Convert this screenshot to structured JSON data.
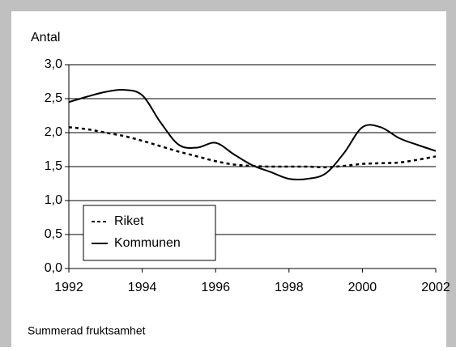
{
  "chart_data": {
    "type": "line",
    "y_label": "Antal",
    "caption": "Summerad fruktsamhet",
    "x": [
      1992,
      1992.5,
      1993,
      1993.5,
      1994,
      1994.5,
      1995,
      1995.5,
      1996,
      1996.5,
      1997,
      1997.5,
      1998,
      1998.5,
      1999,
      1999.5,
      2000,
      2000.5,
      2001,
      2001.5,
      2002
    ],
    "series": [
      {
        "name": "Riket",
        "color": "#000000",
        "dash": true,
        "values": [
          2.08,
          2.05,
          2.0,
          1.95,
          1.88,
          1.8,
          1.72,
          1.65,
          1.58,
          1.53,
          1.51,
          1.5,
          1.5,
          1.5,
          1.49,
          1.51,
          1.54,
          1.55,
          1.56,
          1.6,
          1.65
        ]
      },
      {
        "name": "Kommunen",
        "color": "#000000",
        "dash": false,
        "values": [
          2.45,
          2.53,
          2.6,
          2.63,
          2.55,
          2.15,
          1.82,
          1.78,
          1.85,
          1.68,
          1.52,
          1.42,
          1.32,
          1.32,
          1.4,
          1.7,
          2.08,
          2.08,
          1.92,
          1.82,
          1.73
        ]
      }
    ],
    "xlim": [
      1992,
      2002
    ],
    "xticks": [
      1992,
      1994,
      1996,
      1998,
      2000,
      2002
    ],
    "ylim": [
      0,
      3
    ],
    "yticks": [
      {
        "value": 0,
        "label": "0,0"
      },
      {
        "value": 0.5,
        "label": "0,5"
      },
      {
        "value": 1,
        "label": "1,0"
      },
      {
        "value": 1.5,
        "label": "1,5"
      },
      {
        "value": 2,
        "label": "2,0"
      },
      {
        "value": 2.5,
        "label": "2,5"
      },
      {
        "value": 3,
        "label": "3,0"
      }
    ],
    "grid": true,
    "legend_position": "lower left"
  }
}
